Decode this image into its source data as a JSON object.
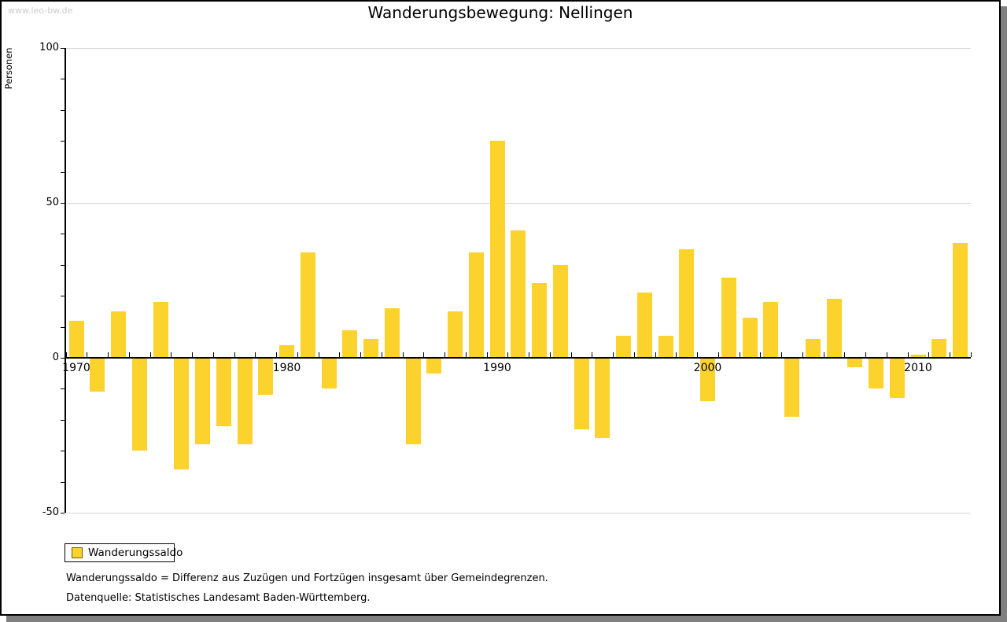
{
  "watermark": "www.leo-bw.de",
  "title": "Wanderungsbewegung: Nellingen",
  "y_axis_label": "Personen",
  "legend": {
    "label": "Wanderungssaldo"
  },
  "footnotes": [
    "Wanderungssaldo = Differenz aus Zuzügen und Fortzügen insgesamt über Gemeindegrenzen.",
    "Datenquelle: Statistisches Landesamt Baden-Württemberg."
  ],
  "colors": {
    "bar": "#fcd22d",
    "legend_swatch_border": "#6b5d11",
    "gridline": "#d6d6d6",
    "axis": "#000000",
    "watermark": "#cccccc",
    "frame_shadow": "#808080"
  },
  "chart_data": {
    "type": "bar",
    "title": "Wanderungsbewegung: Nellingen",
    "xlabel": "",
    "ylabel": "Personen",
    "ylim": [
      -50,
      100
    ],
    "yticks": [
      100,
      50,
      0,
      -50
    ],
    "xticks": [
      1970,
      1980,
      1990,
      2000,
      2010
    ],
    "grid": "horizontal gridlines at 100, 50 and -50; black zero axis line",
    "legend_position": "bottom-left",
    "x": [
      1970,
      1971,
      1972,
      1973,
      1974,
      1975,
      1976,
      1977,
      1978,
      1979,
      1980,
      1981,
      1982,
      1983,
      1984,
      1985,
      1986,
      1987,
      1988,
      1989,
      1990,
      1991,
      1992,
      1993,
      1994,
      1995,
      1996,
      1997,
      1998,
      1999,
      2000,
      2001,
      2002,
      2003,
      2004,
      2005,
      2006,
      2007,
      2008,
      2009,
      2010,
      2011,
      2012
    ],
    "series": [
      {
        "name": "Wanderungssaldo",
        "values": [
          12,
          -11,
          15,
          -30,
          18,
          -36,
          -28,
          -22,
          -28,
          -12,
          4,
          34,
          -10,
          9,
          6,
          16,
          -28,
          -5,
          15,
          34,
          70,
          41,
          24,
          30,
          -23,
          -26,
          7,
          21,
          7,
          35,
          -14,
          26,
          13,
          18,
          -19,
          6,
          19,
          -3,
          -10,
          -13,
          1,
          6,
          37
        ]
      }
    ]
  }
}
